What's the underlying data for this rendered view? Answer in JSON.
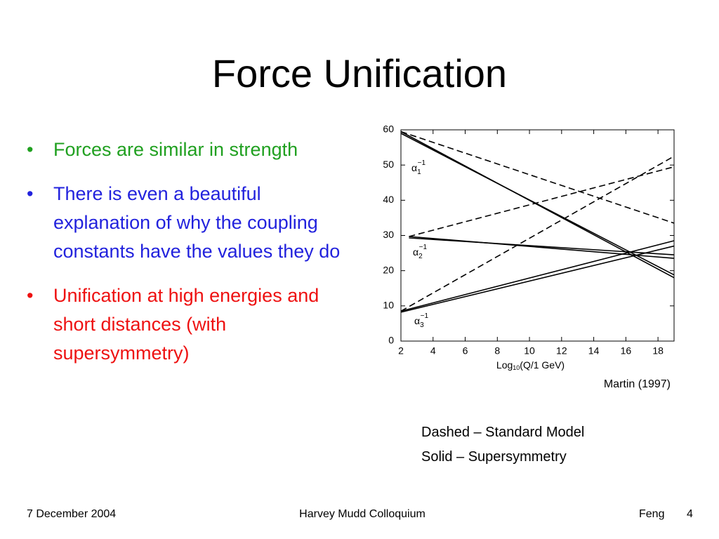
{
  "title": "Force Unification",
  "bullets": [
    {
      "text": "Forces are similar in strength",
      "color": "#20a020"
    },
    {
      "text": "There is even a beautiful explanation of why the coupling constants have the values they do",
      "color": "#2222dd"
    },
    {
      "text": "Unification at high energies and short distances (with supersymmetry)",
      "color": "#ee1111"
    }
  ],
  "chart_data": {
    "type": "line",
    "xlabel": {
      "pre": "Log",
      "sub": "10",
      "post": "(Q/1 GeV)"
    },
    "xlim": [
      2,
      19
    ],
    "xticks": [
      2,
      4,
      6,
      8,
      10,
      12,
      14,
      16,
      18
    ],
    "ylim": [
      0,
      60
    ],
    "yticks": [
      0,
      10,
      20,
      30,
      40,
      50,
      60
    ],
    "series": [
      {
        "color": "#000000",
        "dashed": true,
        "x": [
          2,
          19
        ],
        "values": [
          59.5,
          33.5
        ]
      },
      {
        "color": "#000000",
        "dashed": true,
        "x": [
          2.5,
          19
        ],
        "values": [
          29.7,
          49.5
        ]
      },
      {
        "color": "#000000",
        "dashed": true,
        "x": [
          2,
          19
        ],
        "values": [
          8.5,
          52.5
        ]
      },
      {
        "color": "#000000",
        "dashed": false,
        "x": [
          2,
          19
        ],
        "values": [
          59.5,
          18
        ]
      },
      {
        "color": "#000000",
        "dashed": false,
        "x": [
          2,
          19
        ],
        "values": [
          59,
          18.8
        ]
      },
      {
        "color": "#000000",
        "dashed": false,
        "x": [
          2.5,
          19
        ],
        "values": [
          29.7,
          23.5
        ]
      },
      {
        "color": "#000000",
        "dashed": false,
        "x": [
          2.5,
          19
        ],
        "values": [
          29.3,
          24.5
        ]
      },
      {
        "color": "#000000",
        "dashed": false,
        "x": [
          2,
          19
        ],
        "values": [
          8.5,
          28.5
        ]
      },
      {
        "color": "#000000",
        "dashed": false,
        "x": [
          2,
          19
        ],
        "values": [
          8.2,
          27
        ]
      }
    ],
    "annotations": [
      {
        "symbol": "α",
        "sub": "1",
        "sup": "−1"
      },
      {
        "symbol": "α",
        "sub": "2",
        "sup": "−1"
      },
      {
        "symbol": "α",
        "sub": "3",
        "sup": "−1"
      }
    ]
  },
  "caption": "Martin (1997)",
  "notes": [
    "Dashed – Standard Model",
    "Solid – Supersymmetry"
  ],
  "footer": {
    "date": "7 December 2004",
    "event": "Harvey Mudd Colloquium",
    "author": "Feng",
    "page": "4"
  }
}
